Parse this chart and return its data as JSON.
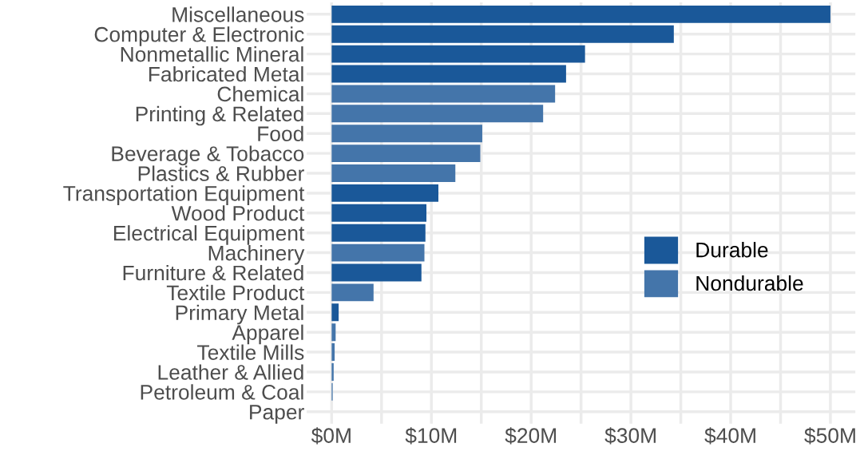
{
  "chart_data": {
    "type": "bar",
    "orientation": "horizontal",
    "categories": [
      "Miscellaneous",
      "Computer & Electronic",
      "Nonmetallic Mineral",
      "Fabricated Metal",
      "Chemical",
      "Printing & Related",
      "Food",
      "Beverage & Tobacco",
      "Plastics & Rubber",
      "Transportation Equipment",
      "Wood Product",
      "Electrical Equipment",
      "Machinery",
      "Furniture & Related",
      "Textile Product",
      "Primary Metal",
      "Apparel",
      "Textile Mills",
      "Leather & Allied",
      "Petroleum & Coal",
      "Paper"
    ],
    "series": [
      {
        "name": "Durable",
        "color": "#1a5899",
        "values": [
          50.0,
          34.3,
          25.4,
          23.5,
          null,
          null,
          null,
          null,
          null,
          10.7,
          9.5,
          9.4,
          null,
          9.0,
          null,
          0.7,
          null,
          null,
          null,
          null,
          null
        ]
      },
      {
        "name": "Nondurable",
        "color": "#4475aa",
        "values": [
          null,
          null,
          null,
          null,
          22.4,
          21.2,
          15.1,
          14.9,
          12.4,
          null,
          null,
          null,
          9.3,
          null,
          4.2,
          null,
          0.4,
          0.3,
          0.2,
          0.1,
          null
        ]
      }
    ],
    "xlim": [
      -2.5,
      52.5
    ],
    "xticks": [
      {
        "value": 0,
        "label": "$0M"
      },
      {
        "value": 5,
        "label": null
      },
      {
        "value": 10,
        "label": "$10M"
      },
      {
        "value": 15,
        "label": null
      },
      {
        "value": 20,
        "label": "$20M"
      },
      {
        "value": 25,
        "label": null
      },
      {
        "value": 30,
        "label": "$30M"
      },
      {
        "value": 35,
        "label": null
      },
      {
        "value": 40,
        "label": "$40M"
      },
      {
        "value": 45,
        "label": null
      },
      {
        "value": 50,
        "label": "$50M"
      }
    ],
    "grid": true,
    "legend": "bottom right"
  }
}
